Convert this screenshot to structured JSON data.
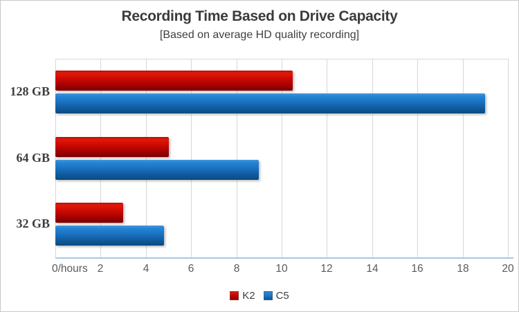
{
  "window": {
    "background_color": "#ffffff",
    "border_color": "#c8c8c8"
  },
  "chart_data": {
    "type": "bar",
    "orientation": "horizontal",
    "title": "Recording Time Based on Drive Capacity",
    "subtitle": "[Based on average HD quality recording]",
    "categories": [
      "128 GB",
      "64 GB",
      "32 GB"
    ],
    "series": [
      {
        "name": "K2",
        "color": "#c00000",
        "values": [
          10.5,
          5,
          3
        ]
      },
      {
        "name": "C5",
        "color": "#1673c4",
        "values": [
          19,
          9,
          4.8
        ]
      }
    ],
    "xlabel": "hours",
    "ylabel": "",
    "xlim": [
      0,
      20
    ],
    "x_tick_values": [
      0,
      2,
      4,
      6,
      8,
      10,
      12,
      14,
      16,
      18,
      20
    ],
    "x_tick_labels": [
      "0/hours",
      "2",
      "4",
      "6",
      "8",
      "10",
      "12",
      "14",
      "16",
      "18",
      "20"
    ],
    "grid": "vertical-only",
    "gridline_color": "#d7d7d7",
    "axis_line_color": "#a9c7e8",
    "legend_position": "bottom",
    "legend": [
      {
        "label": "K2",
        "color": "#c00000"
      },
      {
        "label": "C5",
        "color": "#1673c4"
      }
    ]
  }
}
